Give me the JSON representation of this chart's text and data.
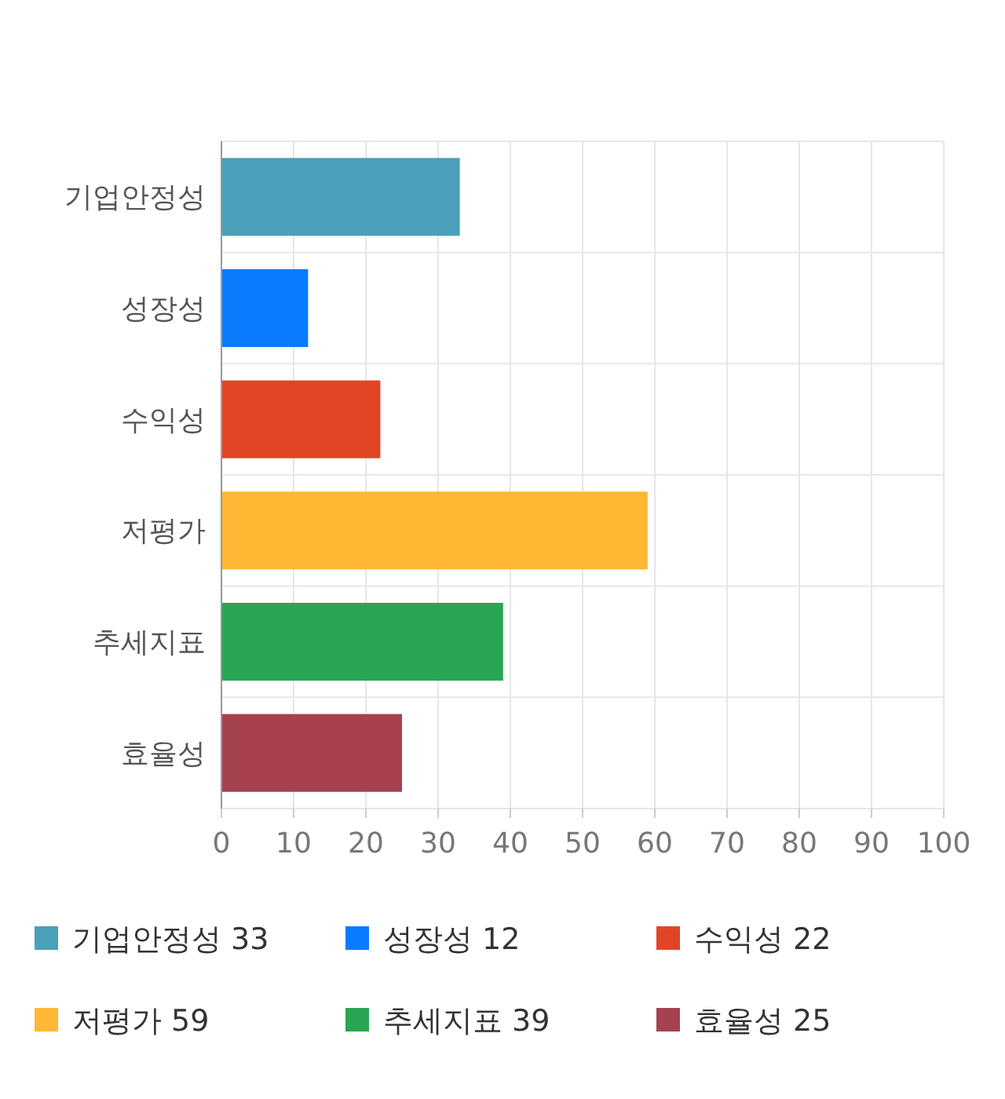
{
  "chart_data": {
    "type": "bar",
    "orientation": "horizontal",
    "stacked": true,
    "categories": [
      "기업안정성",
      "성장성",
      "수익성",
      "저평가",
      "추세지표",
      "효율성"
    ],
    "series": [
      {
        "name": "기업안정성 33",
        "color": "#4aa0b8",
        "values": [
          33,
          null,
          null,
          null,
          null,
          null
        ]
      },
      {
        "name": "성장성 12",
        "color": "#0a7bff",
        "values": [
          null,
          12,
          null,
          null,
          null,
          null
        ]
      },
      {
        "name": "수익성 22",
        "color": "#e24526",
        "values": [
          null,
          null,
          22,
          null,
          null,
          null
        ]
      },
      {
        "name": "저평가 59",
        "color": "#ffb833",
        "values": [
          null,
          null,
          null,
          59,
          null,
          null
        ]
      },
      {
        "name": "추세지표 39",
        "color": "#28a653",
        "values": [
          null,
          null,
          null,
          null,
          39,
          null
        ]
      },
      {
        "name": "효율성 25",
        "color": "#a64250",
        "values": [
          null,
          null,
          null,
          null,
          null,
          25
        ]
      }
    ],
    "xlim": [
      0,
      100
    ],
    "xticks": [
      0,
      10,
      20,
      30,
      40,
      50,
      60,
      70,
      80,
      90,
      100
    ],
    "grid": true,
    "legend": "bottom"
  }
}
